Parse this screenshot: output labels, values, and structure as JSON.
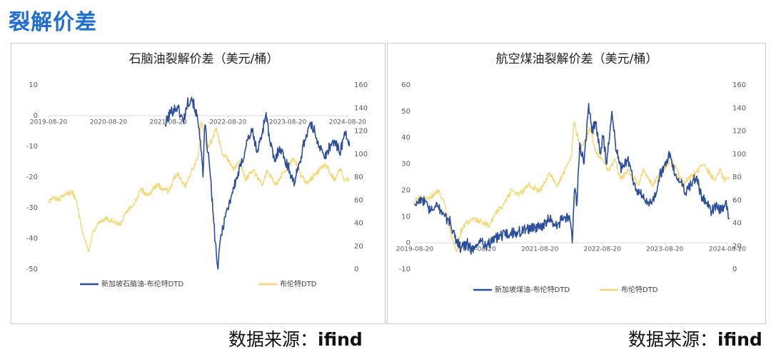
{
  "page": {
    "title": "裂解价差"
  },
  "source_left": {
    "label": "数据来源：",
    "value": "ifind"
  },
  "source_right": {
    "label": "数据来源：",
    "value": "ifind"
  },
  "colors": {
    "title_blue": "#1f6fd1",
    "series_crack": "#2a4d9c",
    "series_brent": "#f7d774",
    "axis_text": "#595959",
    "axis_line": "#d9d9d9"
  },
  "chart_data": [
    {
      "type": "line",
      "title": "石脑油裂解价差（美元/桶）",
      "x_ticks": [
        "2019-08-20",
        "2020-08-20",
        "2021-08-20",
        "2022-08-20",
        "2023-08-20",
        "2024-08-20"
      ],
      "y_left": {
        "range": [
          -50,
          10
        ],
        "ticks": [
          10,
          0,
          -10,
          -20,
          -30,
          -40,
          -50
        ]
      },
      "y_right": {
        "range": [
          0,
          160
        ],
        "ticks": [
          160,
          140,
          120,
          100,
          80,
          60,
          40,
          20,
          0
        ]
      },
      "legend_position": "bottom",
      "series": [
        {
          "name": "新加坡石脑油-布伦特DTD",
          "axis": "left",
          "color": "#2a4d9c",
          "points": [
            [
              "2021-08-01",
              -3
            ],
            [
              "2021-09-01",
              1
            ],
            [
              "2021-10-15",
              3
            ],
            [
              "2021-11-20",
              -2
            ],
            [
              "2021-12-15",
              4
            ],
            [
              "2022-01-10",
              6
            ],
            [
              "2022-02-01",
              2
            ],
            [
              "2022-02-25",
              -4
            ],
            [
              "2022-03-05",
              -8
            ],
            [
              "2022-03-20",
              -20
            ],
            [
              "2022-04-01",
              -3
            ],
            [
              "2022-04-20",
              -12
            ],
            [
              "2022-05-05",
              -20
            ],
            [
              "2022-05-25",
              -35
            ],
            [
              "2022-06-10",
              -45
            ],
            [
              "2022-06-20",
              -50
            ],
            [
              "2022-07-05",
              -40
            ],
            [
              "2022-08-01",
              -33
            ],
            [
              "2022-08-20",
              -30
            ],
            [
              "2022-09-15",
              -25
            ],
            [
              "2022-10-15",
              -20
            ],
            [
              "2022-11-15",
              -15
            ],
            [
              "2022-12-15",
              -8
            ],
            [
              "2023-01-15",
              -5
            ],
            [
              "2023-02-15",
              -12
            ],
            [
              "2023-03-15",
              -6
            ],
            [
              "2023-04-10",
              1
            ],
            [
              "2023-05-01",
              -8
            ],
            [
              "2023-06-01",
              -15
            ],
            [
              "2023-07-01",
              -10
            ],
            [
              "2023-08-01",
              -14
            ],
            [
              "2023-09-01",
              -18
            ],
            [
              "2023-10-01",
              -22
            ],
            [
              "2023-11-01",
              -15
            ],
            [
              "2023-12-01",
              -8
            ],
            [
              "2024-01-01",
              -3
            ],
            [
              "2024-02-01",
              -5
            ],
            [
              "2024-03-01",
              -10
            ],
            [
              "2024-04-01",
              -14
            ],
            [
              "2024-05-01",
              -10
            ],
            [
              "2024-06-01",
              -8
            ],
            [
              "2024-07-01",
              -12
            ],
            [
              "2024-08-10",
              -5
            ],
            [
              "2024-08-31",
              -10
            ]
          ]
        },
        {
          "name": "布伦特DTD",
          "axis": "right",
          "color": "#f7d774",
          "points": [
            [
              "2019-08-20",
              59
            ],
            [
              "2019-09-20",
              62
            ],
            [
              "2019-10-20",
              60
            ],
            [
              "2019-11-20",
              63
            ],
            [
              "2019-12-20",
              66
            ],
            [
              "2020-01-10",
              68
            ],
            [
              "2020-02-10",
              57
            ],
            [
              "2020-03-10",
              36
            ],
            [
              "2020-04-01",
              24
            ],
            [
              "2020-04-20",
              15
            ],
            [
              "2020-05-15",
              32
            ],
            [
              "2020-06-15",
              40
            ],
            [
              "2020-08-01",
              44
            ],
            [
              "2020-09-15",
              41
            ],
            [
              "2020-10-30",
              38
            ],
            [
              "2020-12-01",
              48
            ],
            [
              "2021-01-15",
              55
            ],
            [
              "2021-03-10",
              69
            ],
            [
              "2021-04-15",
              64
            ],
            [
              "2021-06-15",
              73
            ],
            [
              "2021-07-20",
              70
            ],
            [
              "2021-08-20",
              68
            ],
            [
              "2021-10-15",
              84
            ],
            [
              "2021-12-01",
              72
            ],
            [
              "2022-01-15",
              87
            ],
            [
              "2022-02-20",
              98
            ],
            [
              "2022-03-08",
              128
            ],
            [
              "2022-04-15",
              105
            ],
            [
              "2022-05-15",
              112
            ],
            [
              "2022-06-10",
              123
            ],
            [
              "2022-07-15",
              100
            ],
            [
              "2022-08-20",
              96
            ],
            [
              "2022-09-25",
              86
            ],
            [
              "2022-10-30",
              95
            ],
            [
              "2022-12-05",
              78
            ],
            [
              "2023-01-20",
              86
            ],
            [
              "2023-03-20",
              73
            ],
            [
              "2023-04-15",
              86
            ],
            [
              "2023-06-12",
              73
            ],
            [
              "2023-07-30",
              85
            ],
            [
              "2023-09-28",
              96
            ],
            [
              "2023-11-15",
              80
            ],
            [
              "2023-12-12",
              74
            ],
            [
              "2024-01-30",
              82
            ],
            [
              "2024-04-05",
              91
            ],
            [
              "2024-06-05",
              77
            ],
            [
              "2024-07-05",
              87
            ],
            [
              "2024-08-05",
              77
            ],
            [
              "2024-08-31",
              79
            ]
          ]
        }
      ]
    },
    {
      "type": "line",
      "title": "航空煤油裂解价差（美元/桶）",
      "x_ticks": [
        "2019-08-20",
        "2020-08-20",
        "2021-08-20",
        "2022-08-20",
        "2023-08-20",
        "2024-08-20"
      ],
      "y_left": {
        "range": [
          -10,
          60
        ],
        "ticks": [
          60,
          50,
          40,
          30,
          20,
          10,
          0,
          -10
        ]
      },
      "y_right": {
        "range": [
          0,
          160
        ],
        "ticks": [
          160,
          140,
          120,
          100,
          80,
          60,
          40,
          20,
          0
        ]
      },
      "legend_position": "bottom",
      "series": [
        {
          "name": "新加坡煤油-布伦特DTD",
          "axis": "left",
          "color": "#2a4d9c",
          "points": [
            [
              "2019-08-20",
              15
            ],
            [
              "2019-10-01",
              17
            ],
            [
              "2019-11-20",
              12
            ],
            [
              "2020-01-05",
              14
            ],
            [
              "2020-02-10",
              10
            ],
            [
              "2020-03-15",
              8
            ],
            [
              "2020-04-10",
              2
            ],
            [
              "2020-05-15",
              -2
            ],
            [
              "2020-06-20",
              0
            ],
            [
              "2020-07-20",
              -3
            ],
            [
              "2020-09-01",
              1
            ],
            [
              "2020-10-15",
              -1
            ],
            [
              "2020-12-01",
              2
            ],
            [
              "2021-02-01",
              3
            ],
            [
              "2021-04-01",
              4
            ],
            [
              "2021-06-01",
              5
            ],
            [
              "2021-08-20",
              6
            ],
            [
              "2021-10-15",
              9
            ],
            [
              "2021-12-01",
              7
            ],
            [
              "2022-01-15",
              10
            ],
            [
              "2022-02-15",
              8
            ],
            [
              "2022-02-25",
              0
            ],
            [
              "2022-03-10",
              20
            ],
            [
              "2022-03-25",
              15
            ],
            [
              "2022-04-10",
              38
            ],
            [
              "2022-05-05",
              30
            ],
            [
              "2022-06-01",
              53
            ],
            [
              "2022-06-20",
              42
            ],
            [
              "2022-07-15",
              46
            ],
            [
              "2022-08-05",
              34
            ],
            [
              "2022-08-25",
              40
            ],
            [
              "2022-09-15",
              30
            ],
            [
              "2022-10-15",
              50
            ],
            [
              "2022-11-10",
              35
            ],
            [
              "2022-12-10",
              28
            ],
            [
              "2023-01-15",
              32
            ],
            [
              "2023-02-15",
              24
            ],
            [
              "2023-03-15",
              20
            ],
            [
              "2023-04-15",
              17
            ],
            [
              "2023-05-20",
              14
            ],
            [
              "2023-06-20",
              18
            ],
            [
              "2023-07-20",
              25
            ],
            [
              "2023-08-20",
              30
            ],
            [
              "2023-09-20",
              34
            ],
            [
              "2023-10-20",
              26
            ],
            [
              "2023-11-20",
              23
            ],
            [
              "2023-12-20",
              19
            ],
            [
              "2024-01-20",
              22
            ],
            [
              "2024-02-20",
              25
            ],
            [
              "2024-03-20",
              18
            ],
            [
              "2024-04-20",
              15
            ],
            [
              "2024-05-20",
              12
            ],
            [
              "2024-06-20",
              14
            ],
            [
              "2024-07-20",
              12
            ],
            [
              "2024-08-10",
              16
            ],
            [
              "2024-08-31",
              9
            ]
          ]
        },
        {
          "name": "布伦特DTD",
          "axis": "right",
          "color": "#f7d774",
          "points": [
            [
              "2019-08-20",
              59
            ],
            [
              "2019-09-20",
              62
            ],
            [
              "2019-10-20",
              60
            ],
            [
              "2019-11-20",
              63
            ],
            [
              "2019-12-20",
              66
            ],
            [
              "2020-01-10",
              68
            ],
            [
              "2020-02-10",
              57
            ],
            [
              "2020-03-10",
              36
            ],
            [
              "2020-04-01",
              24
            ],
            [
              "2020-04-20",
              15
            ],
            [
              "2020-05-15",
              32
            ],
            [
              "2020-06-15",
              40
            ],
            [
              "2020-08-01",
              44
            ],
            [
              "2020-09-15",
              41
            ],
            [
              "2020-10-30",
              38
            ],
            [
              "2020-12-01",
              48
            ],
            [
              "2021-01-15",
              55
            ],
            [
              "2021-03-10",
              69
            ],
            [
              "2021-04-15",
              64
            ],
            [
              "2021-06-15",
              73
            ],
            [
              "2021-07-20",
              70
            ],
            [
              "2021-08-20",
              68
            ],
            [
              "2021-10-15",
              84
            ],
            [
              "2021-12-01",
              72
            ],
            [
              "2022-01-15",
              87
            ],
            [
              "2022-02-20",
              98
            ],
            [
              "2022-03-08",
              128
            ],
            [
              "2022-04-15",
              105
            ],
            [
              "2022-05-15",
              112
            ],
            [
              "2022-06-10",
              123
            ],
            [
              "2022-07-15",
              100
            ],
            [
              "2022-08-20",
              96
            ],
            [
              "2022-09-25",
              86
            ],
            [
              "2022-10-30",
              95
            ],
            [
              "2022-12-05",
              78
            ],
            [
              "2023-01-20",
              86
            ],
            [
              "2023-03-20",
              73
            ],
            [
              "2023-04-15",
              86
            ],
            [
              "2023-06-12",
              73
            ],
            [
              "2023-07-30",
              85
            ],
            [
              "2023-09-28",
              96
            ],
            [
              "2023-11-15",
              80
            ],
            [
              "2023-12-12",
              74
            ],
            [
              "2024-01-30",
              82
            ],
            [
              "2024-04-05",
              91
            ],
            [
              "2024-06-05",
              77
            ],
            [
              "2024-07-05",
              87
            ],
            [
              "2024-08-05",
              77
            ],
            [
              "2024-08-31",
              79
            ]
          ]
        }
      ]
    }
  ]
}
